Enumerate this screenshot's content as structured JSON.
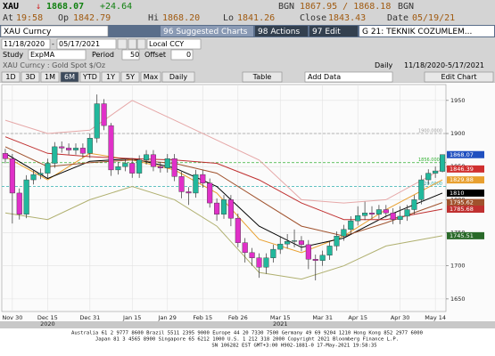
{
  "header": {
    "ticker": "XAU",
    "arrow": "↓",
    "last": "1868.07",
    "change": "+24.64",
    "source_bid": "BGN",
    "bid_ask": "1867.95 / 1868.18",
    "source_ask": "BGN"
  },
  "quote": {
    "at_label": "At",
    "time": "19:58",
    "open_label": "Op",
    "open": "1842.79",
    "high_label": "Hi",
    "high": "1868.20",
    "low_label": "Lo",
    "low": "1841.26",
    "close_label": "Close",
    "close": "1843.43",
    "date_label": "Date",
    "date": "05/19/21"
  },
  "toolbar": {
    "security": "XAU Curncy",
    "suggested": "96 Suggested Charts",
    "actions": "98 Actions",
    "edit": "97 Edit",
    "chart_name": "G 21: TEKNIK COZUMLEM..."
  },
  "range": {
    "start": "11/18/2020",
    "separator": "-",
    "end": "05/17/2021",
    "currency": "Local CCY"
  },
  "study": {
    "label": "Study",
    "name": "ExpMA",
    "period_label": "Period",
    "period": "50",
    "offset_label": "Offset",
    "offset": "0"
  },
  "buttons": [
    "1D",
    "3D",
    "1M",
    "6M",
    "YTD",
    "1Y",
    "5Y",
    "Max",
    "Daily",
    "Table",
    "Add Data",
    "Edit Chart"
  ],
  "chart_data": {
    "type": "candlestick",
    "title": "XAU Curncy : Gold Spot  $/Oz",
    "frequency": "Daily",
    "date_range": "11/18/2020-5/17/2021",
    "categories": [
      null,
      "Nov 30",
      null,
      null,
      null,
      null,
      "Dec 15",
      null,
      null,
      null,
      null,
      null,
      "Dec 31",
      null,
      null,
      null,
      null,
      null,
      "Jan 15",
      null,
      null,
      null,
      null,
      "Jan 29",
      null,
      null,
      null,
      null,
      "Feb 15",
      null,
      null,
      null,
      null,
      "Feb 26",
      null,
      null,
      null,
      null,
      null,
      "Mar 15",
      null,
      null,
      null,
      null,
      null,
      "Mar 31",
      null,
      null,
      null,
      null,
      "Apr 15",
      null,
      null,
      null,
      null,
      null,
      "Apr 30",
      null,
      null,
      null,
      null,
      "May 14",
      null
    ],
    "category_years": [
      null,
      null,
      null,
      null,
      null,
      null,
      "2020",
      null,
      null,
      null,
      null,
      null,
      null,
      null,
      null,
      null,
      null,
      null,
      null,
      null,
      null,
      null,
      null,
      null,
      null,
      null,
      null,
      null,
      null,
      null,
      null,
      null,
      null,
      null,
      null,
      null,
      null,
      null,
      null,
      "2021",
      null,
      null,
      null,
      null,
      null,
      null,
      null,
      null,
      null,
      null,
      null,
      null,
      null,
      null,
      null,
      null,
      null,
      null,
      null,
      null,
      null,
      null,
      null
    ],
    "open": [
      1870,
      1862,
      1810,
      1778,
      1830,
      1838,
      1840,
      1855,
      1880,
      1878,
      1875,
      1878,
      1870,
      1893,
      1945,
      1912,
      1845,
      1850,
      1855,
      1840,
      1860,
      1868,
      1850,
      1848,
      1862,
      1835,
      1812,
      1810,
      1838,
      1825,
      1795,
      1778,
      1800,
      1772,
      1735,
      1720,
      1712,
      1698,
      1712,
      1725,
      1733,
      1737,
      1738,
      1732,
      1710,
      1708,
      1716,
      1730,
      1745,
      1755,
      1768,
      1776,
      1780,
      1778,
      1785,
      1780,
      1770,
      1775,
      1785,
      1800,
      1830,
      1840,
      1842.79
    ],
    "high": [
      1877,
      1869,
      1817,
      1837,
      1845,
      1847,
      1862,
      1887,
      1888,
      1885,
      1885,
      1885,
      1900,
      1959,
      1952,
      1916,
      1857,
      1862,
      1862,
      1867,
      1875,
      1875,
      1857,
      1869,
      1869,
      1842,
      1819,
      1845,
      1845,
      1832,
      1802,
      1807,
      1807,
      1779,
      1742,
      1727,
      1719,
      1719,
      1732,
      1745,
      1748,
      1755,
      1745,
      1739,
      1717,
      1723,
      1737,
      1752,
      1762,
      1775,
      1790,
      1797,
      1790,
      1792,
      1792,
      1787,
      1790,
      1792,
      1807,
      1837,
      1846,
      1850,
      1868.2
    ],
    "low": [
      1855,
      1764,
      1770,
      1772,
      1823,
      1831,
      1833,
      1848,
      1871,
      1868,
      1868,
      1863,
      1863,
      1886,
      1905,
      1836,
      1838,
      1843,
      1833,
      1833,
      1853,
      1843,
      1841,
      1841,
      1828,
      1802,
      1792,
      1803,
      1818,
      1788,
      1768,
      1771,
      1760,
      1728,
      1705,
      1700,
      1682,
      1688,
      1705,
      1718,
      1726,
      1728,
      1722,
      1695,
      1678,
      1700,
      1709,
      1723,
      1738,
      1748,
      1761,
      1769,
      1771,
      1771,
      1773,
      1763,
      1763,
      1768,
      1778,
      1793,
      1823,
      1833,
      1841.26
    ],
    "close": [
      1862,
      1810,
      1778,
      1830,
      1838,
      1840,
      1855,
      1880,
      1878,
      1875,
      1878,
      1870,
      1893,
      1945,
      1912,
      1845,
      1850,
      1855,
      1840,
      1860,
      1868,
      1850,
      1848,
      1862,
      1835,
      1812,
      1810,
      1838,
      1825,
      1795,
      1778,
      1800,
      1772,
      1735,
      1720,
      1712,
      1698,
      1712,
      1725,
      1733,
      1737,
      1738,
      1732,
      1710,
      1708,
      1716,
      1730,
      1745,
      1755,
      1768,
      1776,
      1780,
      1778,
      1785,
      1780,
      1770,
      1775,
      1785,
      1800,
      1830,
      1840,
      1843.43,
      1868.07
    ],
    "up_color": "#22b89c",
    "down_color": "#e030c8",
    "series": [
      {
        "color": "#e6a8a8",
        "x": [
          0,
          6,
          12,
          18,
          24,
          30,
          36,
          42,
          48,
          54,
          62
        ],
        "values": [
          1920,
          1900,
          1905,
          1950,
          1920,
          1890,
          1860,
          1800,
          1795,
          1800,
          1846.39
        ]
      },
      {
        "color": "#e8a030",
        "x": [
          0,
          6,
          12,
          18,
          24,
          30,
          36,
          42,
          48,
          54,
          62
        ],
        "values": [
          1865,
          1830,
          1870,
          1860,
          1845,
          1810,
          1740,
          1720,
          1745,
          1785,
          1829.88
        ]
      },
      {
        "color": "#000000",
        "x": [
          0,
          6,
          12,
          18,
          24,
          30,
          36,
          42,
          48,
          54,
          62
        ],
        "values": [
          1870,
          1832,
          1858,
          1862,
          1848,
          1820,
          1760,
          1728,
          1742,
          1775,
          1810
        ]
      },
      {
        "color": "#a0522d",
        "x": [
          0,
          6,
          12,
          18,
          24,
          30,
          36,
          42,
          48,
          54,
          62
        ],
        "values": [
          1880,
          1850,
          1856,
          1860,
          1855,
          1840,
          1800,
          1760,
          1745,
          1765,
          1795.62
        ]
      },
      {
        "color": "#c03030",
        "x": [
          0,
          6,
          12,
          18,
          24,
          30,
          36,
          42,
          48,
          54,
          62
        ],
        "values": [
          1895,
          1870,
          1865,
          1862,
          1860,
          1855,
          1830,
          1795,
          1770,
          1770,
          1785.68
        ]
      },
      {
        "color": "#b0b070",
        "x": [
          0,
          6,
          12,
          18,
          24,
          30,
          36,
          42,
          48,
          54,
          62
        ],
        "values": [
          1780,
          1770,
          1800,
          1820,
          1800,
          1760,
          1690,
          1680,
          1700,
          1730,
          1745.51
        ]
      }
    ],
    "levels": [
      {
        "value": 1900,
        "label": "1900.0000",
        "color": "#a0a0a0"
      },
      {
        "value": 1856,
        "label": "1856.0000",
        "color": "#30b030"
      },
      {
        "value": 1820,
        "label": "1820.0000",
        "color": "#30b0b0"
      }
    ],
    "price_tags": [
      {
        "value": 1868.07,
        "color": "#2050c0"
      },
      {
        "value": 1846.39,
        "color": "#d03030"
      },
      {
        "value": 1829.88,
        "color": "#e8a030"
      },
      {
        "value": 1810.0,
        "color": "#000000"
      },
      {
        "value": 1795.62,
        "color": "#a0522d"
      },
      {
        "value": 1785.68,
        "color": "#c03030"
      },
      {
        "value": 1745.51,
        "color": "#2a6a2a"
      }
    ],
    "ylim": [
      1631,
      1974
    ],
    "yticks": [
      1650,
      1700,
      1750,
      1800,
      1850,
      1900,
      1950
    ],
    "grid": true
  },
  "footer": [
    "Australia 61 2 9777 8600 Brazil 5511 2395 9000 Europe 44 20 7330 7500 Germany 49 69 9204 1210 Hong Kong 852 2977 6000",
    "Japan 81 3 4565 8900        Singapore 65 6212 1000        U.S. 1 212 318 2000        Copyright 2021 Bloomberg Finance L.P.",
    "SN 106282 EST  GMT+3:00 H902-1881-0 17-May-2021 19:58:35"
  ]
}
